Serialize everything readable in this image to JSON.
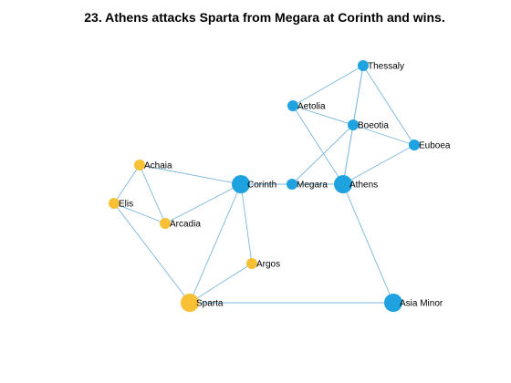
{
  "title": "23. Athens attacks Sparta from Megara at Corinth and wins.",
  "colors": {
    "athens_side": "#1fa2e0",
    "sparta_side": "#f7c035",
    "edge": "#7ab6dc"
  },
  "nodes": [
    {
      "id": "thessaly",
      "label": "Thessaly",
      "side": "athens_side",
      "size": "small"
    },
    {
      "id": "aetolia",
      "label": "Aetolia",
      "side": "athens_side",
      "size": "small"
    },
    {
      "id": "boeotia",
      "label": "Boeotia",
      "side": "athens_side",
      "size": "small"
    },
    {
      "id": "euboea",
      "label": "Euboea",
      "side": "athens_side",
      "size": "small"
    },
    {
      "id": "corinth",
      "label": "Corinth",
      "side": "athens_side",
      "size": "large"
    },
    {
      "id": "megara",
      "label": "Megara",
      "side": "athens_side",
      "size": "small"
    },
    {
      "id": "athens",
      "label": "Athens",
      "side": "athens_side",
      "size": "large"
    },
    {
      "id": "asia_minor",
      "label": "Asia Minor",
      "side": "athens_side",
      "size": "large"
    },
    {
      "id": "achaia",
      "label": "Achaia",
      "side": "sparta_side",
      "size": "small"
    },
    {
      "id": "elis",
      "label": "Elis",
      "side": "sparta_side",
      "size": "small"
    },
    {
      "id": "arcadia",
      "label": "Arcadia",
      "side": "sparta_side",
      "size": "small"
    },
    {
      "id": "argos",
      "label": "Argos",
      "side": "sparta_side",
      "size": "small"
    },
    {
      "id": "sparta",
      "label": "Sparta",
      "side": "sparta_side",
      "size": "large"
    }
  ],
  "edges": [
    [
      "thessaly",
      "aetolia"
    ],
    [
      "thessaly",
      "boeotia"
    ],
    [
      "thessaly",
      "euboea"
    ],
    [
      "thessaly",
      "athens"
    ],
    [
      "aetolia",
      "boeotia"
    ],
    [
      "aetolia",
      "athens"
    ],
    [
      "boeotia",
      "euboea"
    ],
    [
      "boeotia",
      "megara"
    ],
    [
      "boeotia",
      "athens"
    ],
    [
      "euboea",
      "athens"
    ],
    [
      "megara",
      "athens"
    ],
    [
      "athens",
      "asia_minor"
    ],
    [
      "corinth",
      "megara"
    ],
    [
      "corinth",
      "achaia"
    ],
    [
      "corinth",
      "arcadia"
    ],
    [
      "corinth",
      "argos"
    ],
    [
      "corinth",
      "sparta"
    ],
    [
      "achaia",
      "elis"
    ],
    [
      "achaia",
      "arcadia"
    ],
    [
      "elis",
      "arcadia"
    ],
    [
      "elis",
      "sparta"
    ],
    [
      "argos",
      "sparta"
    ],
    [
      "sparta",
      "asia_minor"
    ]
  ]
}
